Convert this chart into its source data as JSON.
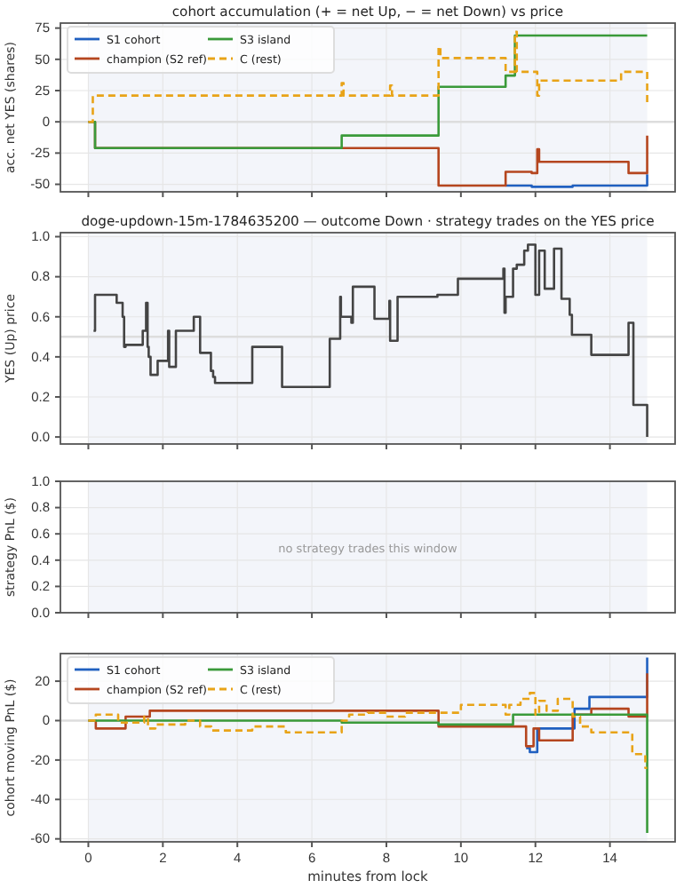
{
  "chart_data": [
    {
      "type": "step",
      "title": "cohort accumulation (+ = net Up, − = net Down) vs price",
      "ylabel": "acc. net YES (shares)",
      "xlim": [
        -0.75,
        15.75
      ],
      "xticks": [
        0,
        2,
        4,
        6,
        8,
        10,
        12,
        14
      ],
      "ylim": [
        -56,
        79
      ],
      "yticks": [
        -50,
        -25,
        0,
        25,
        50,
        75
      ],
      "grid": true,
      "legend": "top left",
      "tick_labels": "y",
      "line_style": "solid",
      "ref_lines": [
        {
          "axis": "y",
          "value": 0,
          "color": "#dddddd"
        }
      ],
      "bands": [
        {
          "axis": "x",
          "from": 0,
          "to": 15,
          "color": "#f3f5fa"
        }
      ],
      "series": [
        {
          "name": "S1 cohort",
          "color": "#2060c0",
          "x": [
            11.2,
            11.9,
            13.0,
            14.95,
            15
          ],
          "values": [
            -51,
            -52,
            -51,
            -51,
            -42
          ]
        },
        {
          "name": "champion (S2 ref)",
          "color": "#b5461f",
          "x": [
            0,
            0.18,
            6.8,
            9.4,
            11.2,
            11.9,
            12.05,
            12.1,
            14.5,
            15
          ],
          "values": [
            0,
            -21,
            -21,
            -51,
            -40,
            -41,
            -22,
            -32,
            -41,
            -11
          ]
        },
        {
          "name": "S3 island",
          "color": "#3a9a3a",
          "x": [
            0,
            0.18,
            6.8,
            9.4,
            11.2,
            11.45,
            15
          ],
          "values": [
            0,
            -21,
            -11,
            28,
            37,
            69,
            69
          ]
        },
        {
          "name": "C (rest)",
          "color": "#e8a317",
          "line_style": "dashed",
          "x": [
            0,
            0.12,
            6.8,
            6.85,
            8.1,
            8.15,
            9.4,
            9.45,
            11.2,
            11.45,
            11.5,
            12.05,
            12.1,
            14.3,
            14.95,
            15
          ],
          "values": [
            0,
            21,
            31,
            21,
            29,
            21,
            60,
            51,
            40,
            72,
            40,
            21,
            33,
            40,
            40,
            13
          ]
        }
      ]
    },
    {
      "type": "step",
      "title": "doge-updown-15m-1784635200 — outcome Down · strategy trades on the YES price",
      "ylabel": "YES (Up) price",
      "xlim": [
        -0.75,
        15.75
      ],
      "xticks": [
        0,
        2,
        4,
        6,
        8,
        10,
        12,
        14
      ],
      "ylim": [
        -0.035,
        1.02
      ],
      "yticks": [
        {
          "value": 0,
          "label": "0.0"
        },
        {
          "value": 0.2,
          "label": "0.2"
        },
        {
          "value": 0.4,
          "label": "0.4"
        },
        {
          "value": 0.6,
          "label": "0.6"
        },
        {
          "value": 0.8,
          "label": "0.8"
        },
        {
          "value": 1,
          "label": "1.0"
        }
      ],
      "grid": true,
      "tick_labels": "y",
      "ref_lines": [
        {
          "axis": "y",
          "value": 0.5,
          "color": "#dddddd"
        }
      ],
      "bands": [
        {
          "axis": "x",
          "from": 0,
          "to": 15,
          "color": "#f3f5fa"
        }
      ],
      "series": [
        {
          "color": "#444444",
          "x": [
            0.14,
            0.18,
            0.76,
            0.92,
            0.96,
            1.0,
            1.46,
            1.55,
            1.59,
            1.62,
            1.67,
            1.86,
            2.14,
            2.17,
            2.2,
            2.35,
            2.83,
            3.0,
            3.29,
            3.35,
            3.4,
            4.4,
            5.2,
            6.48,
            6.76,
            6.78,
            6.8,
            7.06,
            7.1,
            7.68,
            8.08,
            8.1,
            8.14,
            8.3,
            9.37,
            9.92,
            11.14,
            11.17,
            11.2,
            11.4,
            11.5,
            11.7,
            11.8,
            12.0,
            12.1,
            12.25,
            12.5,
            12.7,
            12.92,
            12.98,
            13.08,
            13.5,
            14.5,
            14.63,
            14.95,
            15
          ],
          "values": [
            0.53,
            0.71,
            0.67,
            0.6,
            0.45,
            0.46,
            0.53,
            0.67,
            0.45,
            0.4,
            0.31,
            0.38,
            0.53,
            0.35,
            0.35,
            0.53,
            0.6,
            0.42,
            0.33,
            0.3,
            0.27,
            0.45,
            0.25,
            0.49,
            0.7,
            0.6,
            0.6,
            0.57,
            0.75,
            0.59,
            0.68,
            0.48,
            0.48,
            0.7,
            0.71,
            0.79,
            0.84,
            0.62,
            0.7,
            0.84,
            0.86,
            0.93,
            0.96,
            0.71,
            0.93,
            0.74,
            0.94,
            0.69,
            0.61,
            0.51,
            0.51,
            0.41,
            0.57,
            0.16,
            0.16,
            0.0
          ]
        }
      ]
    },
    {
      "type": "step",
      "ylabel": "strategy PnL ($)",
      "xlim": [
        -0.75,
        15.75
      ],
      "xticks": [
        0,
        2,
        4,
        6,
        8,
        10,
        12,
        14
      ],
      "ylim": [
        0,
        1
      ],
      "yticks": [
        {
          "value": 0,
          "label": "0.0"
        },
        {
          "value": 0.2,
          "label": "0.2"
        },
        {
          "value": 0.4,
          "label": "0.4"
        },
        {
          "value": 0.6,
          "label": "0.6"
        },
        {
          "value": 0.8,
          "label": "0.8"
        },
        {
          "value": 1,
          "label": "1.0"
        }
      ],
      "grid": true,
      "tick_labels": "y",
      "bands": [
        {
          "axis": "x",
          "from": 0,
          "to": 15,
          "color": "#f3f5fa"
        }
      ],
      "annotations": [
        "no strategy trades this window"
      ]
    },
    {
      "type": "step",
      "ylabel": "cohort moving PnL ($)",
      "xlabel": "minutes from lock",
      "xlim": [
        -0.75,
        15.75
      ],
      "xticks": [
        0,
        2,
        4,
        6,
        8,
        10,
        12,
        14
      ],
      "ylim": [
        -61.5,
        34
      ],
      "yticks": [
        -60,
        -40,
        -20,
        0,
        20
      ],
      "grid": true,
      "legend": "top left",
      "ref_lines": [
        {
          "axis": "y",
          "value": 0,
          "color": "#dddddd"
        }
      ],
      "bands": [
        {
          "axis": "x",
          "from": 0,
          "to": 15,
          "color": "#f3f5fa"
        }
      ],
      "series": [
        {
          "name": "S1 cohort",
          "color": "#2060c0",
          "x": [
            11.75,
            11.85,
            12.05,
            13.05,
            13.45,
            14.95,
            15
          ],
          "values": [
            -14,
            -16,
            -4,
            6,
            12,
            12,
            32
          ]
        },
        {
          "name": "champion (S2 ref)",
          "color": "#b5461f",
          "x": [
            0,
            0.2,
            1.0,
            1.65,
            9.4,
            11.75,
            11.95,
            12.0,
            12.1,
            13.0,
            13.5,
            14.5,
            14.95,
            15
          ],
          "values": [
            0,
            -4,
            2,
            5,
            -3,
            -13,
            -4,
            -4,
            -10,
            3,
            6,
            2,
            2,
            24
          ]
        },
        {
          "name": "S3 island",
          "color": "#3a9a3a",
          "x": [
            0,
            6.8,
            9.4,
            11.4,
            14.97,
            15
          ],
          "values": [
            0,
            -1,
            -2,
            3,
            3,
            -57
          ]
        },
        {
          "name": "C (rest)",
          "color": "#e8a317",
          "line_style": "dashed",
          "x": [
            0,
            0.2,
            0.8,
            1.5,
            1.6,
            1.8,
            2.0,
            2.6,
            3.0,
            3.3,
            4.4,
            5.3,
            6.5,
            6.8,
            7.0,
            7.5,
            8.0,
            8.5,
            9.4,
            10.0,
            11.2,
            11.3,
            11.6,
            11.85,
            12.0,
            12.1,
            12.3,
            12.6,
            13.0,
            13.2,
            13.5,
            14.6,
            14.95,
            15
          ],
          "values": [
            0,
            3,
            -1,
            2,
            -4,
            -2,
            -2,
            0,
            -3,
            -5,
            -3,
            -6,
            -6,
            0,
            3,
            4,
            2,
            4,
            4,
            8,
            3,
            8,
            11,
            14,
            3,
            10,
            5,
            11,
            2,
            -3,
            -6,
            -17,
            -24,
            -24
          ]
        }
      ]
    }
  ]
}
